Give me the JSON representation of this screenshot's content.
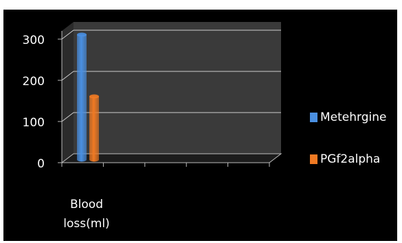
{
  "chart_data": {
    "type": "bar",
    "categories": [
      "Blood loss(ml)"
    ],
    "category_label_lines": [
      "Blood",
      "loss(ml)"
    ],
    "series": [
      {
        "name": "Metehrgine",
        "values": [
          300
        ],
        "color": "#4a90e2"
      },
      {
        "name": "PGf2alpha",
        "values": [
          150
        ],
        "color": "#f07a23"
      }
    ],
    "y_ticks": [
      "0",
      "100",
      "200",
      "300"
    ],
    "ylim": [
      0,
      300
    ],
    "grid": true,
    "legend_position": "right",
    "style": "3d-cylinder",
    "colors": {
      "background": "#000000",
      "plot_fill": "#3a3a3a",
      "grid": "#cfcfcf",
      "text": "#ffffff"
    }
  }
}
